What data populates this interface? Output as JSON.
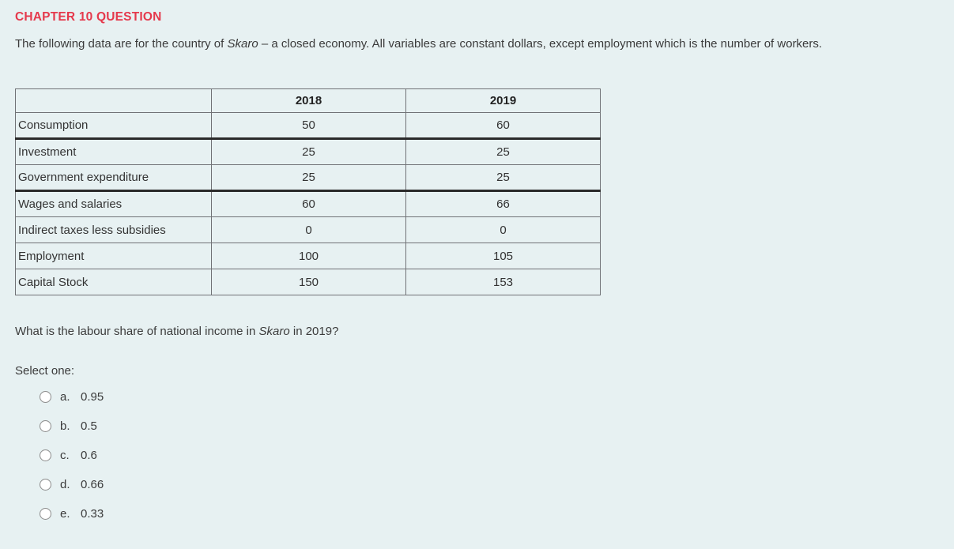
{
  "page": {
    "background_color": "#e7f1f2",
    "heading": "CHAPTER 10 QUESTION",
    "heading_color": "#e5394c",
    "intro": {
      "pre_italic": "The following data are for the country of ",
      "italic": "Skaro",
      "post_italic": " – a closed economy. All variables are constant dollars, except employment which is the number of workers."
    }
  },
  "table": {
    "columns": [
      "",
      "2018",
      "2019"
    ],
    "rows": [
      {
        "label": "Consumption",
        "y2018": "50",
        "y2019": "60"
      },
      {
        "label": "Investment",
        "y2018": "25",
        "y2019": "25"
      },
      {
        "label": "Government expenditure",
        "y2018": "25",
        "y2019": "25"
      },
      {
        "label": "Wages and salaries",
        "y2018": "60",
        "y2019": "66"
      },
      {
        "label": "Indirect taxes less subsidies",
        "y2018": "0",
        "y2019": "0"
      },
      {
        "label": "Employment",
        "y2018": "100",
        "y2019": "105"
      },
      {
        "label": "Capital Stock",
        "y2018": "150",
        "y2019": "153"
      }
    ]
  },
  "question": {
    "pre_italic": "What is the labour share of national income in ",
    "italic": "Skaro",
    "post_italic": " in 2019?",
    "select_label": "Select one:",
    "options": [
      {
        "letter": "a.",
        "value": "0.95",
        "selected": false
      },
      {
        "letter": "b.",
        "value": "0.5",
        "selected": false
      },
      {
        "letter": "c.",
        "value": "0.6",
        "selected": false
      },
      {
        "letter": "d.",
        "value": "0.66",
        "selected": false
      },
      {
        "letter": "e.",
        "value": "0.33",
        "selected": false
      }
    ]
  }
}
